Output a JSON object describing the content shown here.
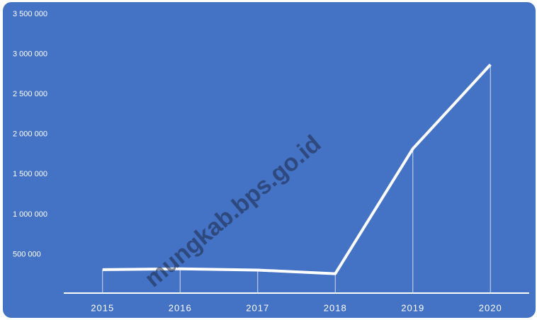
{
  "chart_data": {
    "type": "line",
    "categories": [
      "2015",
      "2016",
      "2017",
      "2018",
      "2019",
      "2020"
    ],
    "series": [
      {
        "name": null,
        "color": "#ffffff",
        "values": [
          310000,
          320000,
          305000,
          260000,
          1820000,
          2870000
        ]
      }
    ],
    "ylim": [
      0,
      3500000
    ],
    "yticks": [
      {
        "value": 500000,
        "label": "500 000"
      },
      {
        "value": 1000000,
        "label": "1 000 000"
      },
      {
        "value": 1500000,
        "label": "1 500 000"
      },
      {
        "value": 2000000,
        "label": "2 000 000"
      },
      {
        "value": 2500000,
        "label": "2 500 000"
      },
      {
        "value": 3000000,
        "label": "3 000 000"
      },
      {
        "value": 3500000,
        "label": "3 500 000"
      }
    ],
    "background": "#4472c4",
    "watermark": "mungkab.bps.go.id"
  }
}
